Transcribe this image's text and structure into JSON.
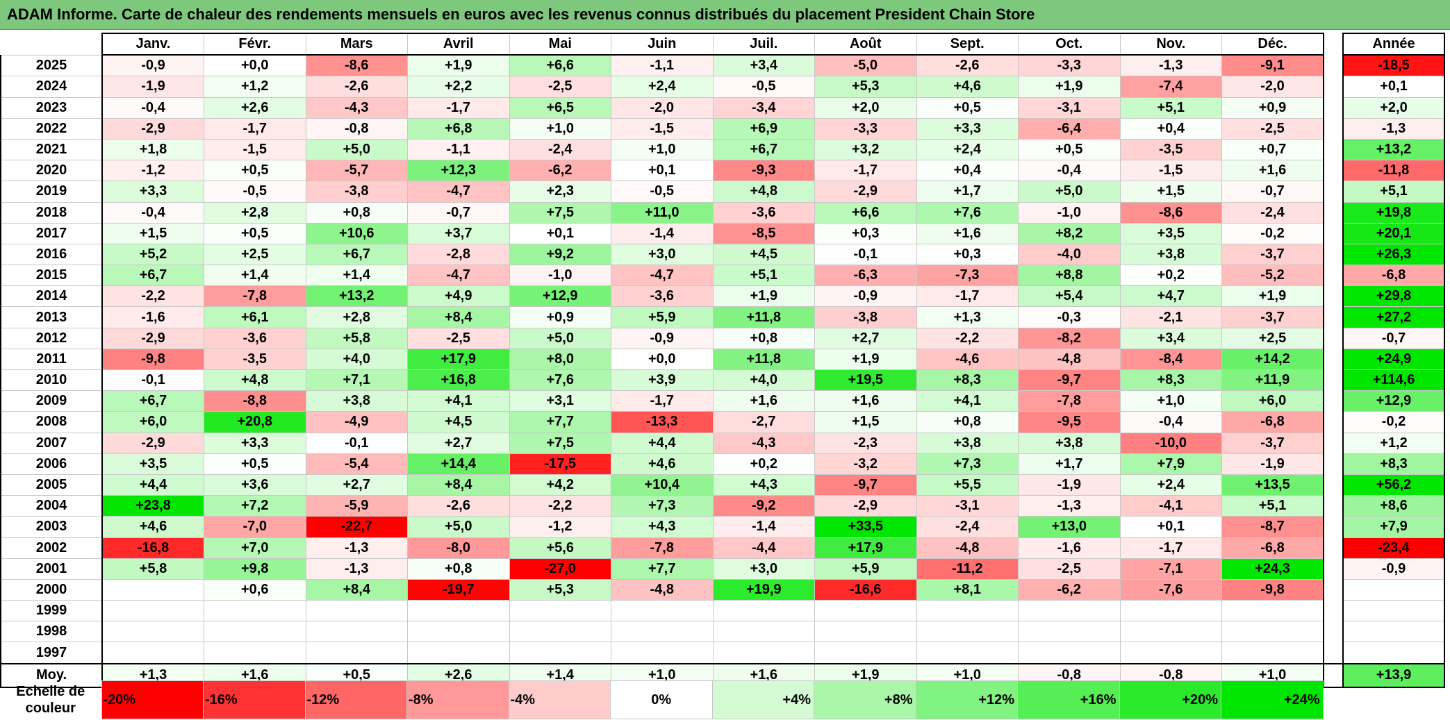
{
  "title": "ADAM Informe. Carte de chaleur des rendements mensuels en euros avec les revenus connus distribués du placement President Chain Store",
  "colors": {
    "title_bar": "#7ec87e",
    "negative_max": "#ff0000",
    "neutral": "#ffffff",
    "positive_max": "#00e600"
  },
  "chart_data": {
    "type": "heatmap",
    "title": "ADAM Informe. Carte de chaleur des rendements mensuels en euros avec les revenus connus distribués du placement President Chain Store",
    "columns": [
      "Janv.",
      "Févr.",
      "Mars",
      "Avril",
      "Mai",
      "Juin",
      "Juil.",
      "Août",
      "Sept.",
      "Oct.",
      "Nov.",
      "Déc."
    ],
    "year_column_label": "Année",
    "rows": [
      {
        "year": "2025",
        "months": [
          "-0,9",
          "+0,0",
          "-8,6",
          "+1,9",
          "+6,6",
          "-1,1",
          "+3,4",
          "-5,0",
          "-2,6",
          "-3,3",
          "-1,3",
          "-9,1"
        ],
        "annual": "-18,5"
      },
      {
        "year": "2024",
        "months": [
          "-1,9",
          "+1,2",
          "-2,6",
          "+2,2",
          "-2,5",
          "+2,4",
          "-0,5",
          "+5,3",
          "+4,6",
          "+1,9",
          "-7,4",
          "-2,0"
        ],
        "annual": "+0,1"
      },
      {
        "year": "2023",
        "months": [
          "-0,4",
          "+2,6",
          "-4,3",
          "-1,7",
          "+6,5",
          "-2,0",
          "-3,4",
          "+2,0",
          "+0,5",
          "-3,1",
          "+5,1",
          "+0,9"
        ],
        "annual": "+2,0"
      },
      {
        "year": "2022",
        "months": [
          "-2,9",
          "-1,7",
          "-0,8",
          "+6,8",
          "+1,0",
          "-1,5",
          "+6,9",
          "-3,3",
          "+3,3",
          "-6,4",
          "+0,4",
          "-2,5"
        ],
        "annual": "-1,3"
      },
      {
        "year": "2021",
        "months": [
          "+1,8",
          "-1,5",
          "+5,0",
          "-1,1",
          "-2,4",
          "+1,0",
          "+6,7",
          "+3,2",
          "+2,4",
          "+0,5",
          "-3,5",
          "+0,7"
        ],
        "annual": "+13,2"
      },
      {
        "year": "2020",
        "months": [
          "-1,2",
          "+0,5",
          "-5,7",
          "+12,3",
          "-6,2",
          "+0,1",
          "-9,3",
          "-1,7",
          "+0,4",
          "-0,4",
          "-1,5",
          "+1,6"
        ],
        "annual": "-11,8"
      },
      {
        "year": "2019",
        "months": [
          "+3,3",
          "-0,5",
          "-3,8",
          "-4,7",
          "+2,3",
          "-0,5",
          "+4,8",
          "-2,9",
          "+1,7",
          "+5,0",
          "+1,5",
          "-0,7"
        ],
        "annual": "+5,1"
      },
      {
        "year": "2018",
        "months": [
          "-0,4",
          "+2,8",
          "+0,8",
          "-0,7",
          "+7,5",
          "+11,0",
          "-3,6",
          "+6,6",
          "+7,6",
          "-1,0",
          "-8,6",
          "-2,4"
        ],
        "annual": "+19,8"
      },
      {
        "year": "2017",
        "months": [
          "+1,5",
          "+0,5",
          "+10,6",
          "+3,7",
          "+0,1",
          "-1,4",
          "-8,5",
          "+0,3",
          "+1,6",
          "+8,2",
          "+3,5",
          "-0,2"
        ],
        "annual": "+20,1"
      },
      {
        "year": "2016",
        "months": [
          "+5,2",
          "+2,5",
          "+6,7",
          "-2,8",
          "+9,2",
          "+3,0",
          "+4,5",
          "-0,1",
          "+0,3",
          "-4,0",
          "+3,8",
          "-3,7"
        ],
        "annual": "+26,3"
      },
      {
        "year": "2015",
        "months": [
          "+6,7",
          "+1,4",
          "+1,4",
          "-4,7",
          "-1,0",
          "-4,7",
          "+5,1",
          "-6,3",
          "-7,3",
          "+8,8",
          "+0,2",
          "-5,2"
        ],
        "annual": "-6,8"
      },
      {
        "year": "2014",
        "months": [
          "-2,2",
          "-7,8",
          "+13,2",
          "+4,9",
          "+12,9",
          "-3,6",
          "+1,9",
          "-0,9",
          "-1,7",
          "+5,4",
          "+4,7",
          "+1,9"
        ],
        "annual": "+29,8"
      },
      {
        "year": "2013",
        "months": [
          "-1,6",
          "+6,1",
          "+2,8",
          "+8,4",
          "+0,9",
          "+5,9",
          "+11,8",
          "-3,8",
          "+1,3",
          "-0,3",
          "-2,1",
          "-3,7"
        ],
        "annual": "+27,2"
      },
      {
        "year": "2012",
        "months": [
          "-2,9",
          "-3,6",
          "+5,8",
          "-2,5",
          "+5,0",
          "-0,9",
          "+0,8",
          "+2,7",
          "-2,2",
          "-8,2",
          "+3,4",
          "+2,5"
        ],
        "annual": "-0,7"
      },
      {
        "year": "2011",
        "months": [
          "-9,8",
          "-3,5",
          "+4,0",
          "+17,9",
          "+8,0",
          "+0,0",
          "+11,8",
          "+1,9",
          "-4,6",
          "-4,8",
          "-8,4",
          "+14,2"
        ],
        "annual": "+24,9"
      },
      {
        "year": "2010",
        "months": [
          "-0,1",
          "+4,8",
          "+7,1",
          "+16,8",
          "+7,6",
          "+3,9",
          "+4,0",
          "+19,5",
          "+8,3",
          "-9,7",
          "+8,3",
          "+11,9"
        ],
        "annual": "+114,6"
      },
      {
        "year": "2009",
        "months": [
          "+6,7",
          "-8,8",
          "+3,8",
          "+4,1",
          "+3,1",
          "-1,7",
          "+1,6",
          "+1,6",
          "+4,1",
          "-7,8",
          "+1,0",
          "+6,0"
        ],
        "annual": "+12,9"
      },
      {
        "year": "2008",
        "months": [
          "+6,0",
          "+20,8",
          "-4,9",
          "+4,5",
          "+7,7",
          "-13,3",
          "-2,7",
          "+1,5",
          "+0,8",
          "-9,5",
          "-0,4",
          "-6,8"
        ],
        "annual": "-0,2"
      },
      {
        "year": "2007",
        "months": [
          "-2,9",
          "+3,3",
          "-0,1",
          "+2,7",
          "+7,5",
          "+4,4",
          "-4,3",
          "-2,3",
          "+3,8",
          "+3,8",
          "-10,0",
          "-3,7"
        ],
        "annual": "+1,2"
      },
      {
        "year": "2006",
        "months": [
          "+3,5",
          "+0,5",
          "-5,4",
          "+14,4",
          "-17,5",
          "+4,6",
          "+0,2",
          "-3,2",
          "+7,3",
          "+1,7",
          "+7,9",
          "-1,9"
        ],
        "annual": "+8,3"
      },
      {
        "year": "2005",
        "months": [
          "+4,4",
          "+3,6",
          "+2,7",
          "+8,4",
          "+4,2",
          "+10,4",
          "+4,3",
          "-9,7",
          "+5,5",
          "-1,9",
          "+2,4",
          "+13,5"
        ],
        "annual": "+56,2"
      },
      {
        "year": "2004",
        "months": [
          "+23,8",
          "+7,2",
          "-5,9",
          "-2,6",
          "-2,2",
          "+7,3",
          "-9,2",
          "-2,9",
          "-3,1",
          "-1,3",
          "-4,1",
          "+5,1"
        ],
        "annual": "+8,6"
      },
      {
        "year": "2003",
        "months": [
          "+4,6",
          "-7,0",
          "-22,7",
          "+5,0",
          "-1,2",
          "+4,3",
          "-1,4",
          "+33,5",
          "-2,4",
          "+13,0",
          "+0,1",
          "-8,7"
        ],
        "annual": "+7,9"
      },
      {
        "year": "2002",
        "months": [
          "-16,8",
          "+7,0",
          "-1,3",
          "-8,0",
          "+5,6",
          "-7,8",
          "-4,4",
          "+17,9",
          "-4,8",
          "-1,6",
          "-1,7",
          "-6,8"
        ],
        "annual": "-23,4"
      },
      {
        "year": "2001",
        "months": [
          "+5,8",
          "+9,8",
          "-1,3",
          "+0,8",
          "-27,0",
          "+7,7",
          "+3,0",
          "+5,9",
          "-11,2",
          "-2,5",
          "-7,1",
          "+24,3"
        ],
        "annual": "-0,9"
      },
      {
        "year": "2000",
        "months": [
          "",
          "+0,6",
          "+8,4",
          "-19,7",
          "+5,3",
          "-4,8",
          "+19,9",
          "-16,6",
          "+8,1",
          "-6,2",
          "-7,6",
          "-9,8"
        ],
        "annual": ""
      },
      {
        "year": "1999",
        "months": [
          "",
          "",
          "",
          "",
          "",
          "",
          "",
          "",
          "",
          "",
          "",
          ""
        ],
        "annual": ""
      },
      {
        "year": "1998",
        "months": [
          "",
          "",
          "",
          "",
          "",
          "",
          "",
          "",
          "",
          "",
          "",
          ""
        ],
        "annual": ""
      },
      {
        "year": "1997",
        "months": [
          "",
          "",
          "",
          "",
          "",
          "",
          "",
          "",
          "",
          "",
          "",
          ""
        ],
        "annual": ""
      }
    ],
    "average": {
      "label": "Moy.",
      "months": [
        "+1,3",
        "+1,6",
        "+0,5",
        "+2,6",
        "+1,4",
        "+1,0",
        "+1,6",
        "+1,9",
        "+1,0",
        "-0,8",
        "-0,8",
        "+1,0"
      ],
      "annual": "+13,9"
    },
    "scale": {
      "label": "Echelle de couleur",
      "stops": [
        "-20%",
        "-16%",
        "-12%",
        "-8%",
        "-4%",
        "0%",
        "+4%",
        "+8%",
        "+12%",
        "+16%",
        "+20%",
        "+24%"
      ]
    }
  }
}
